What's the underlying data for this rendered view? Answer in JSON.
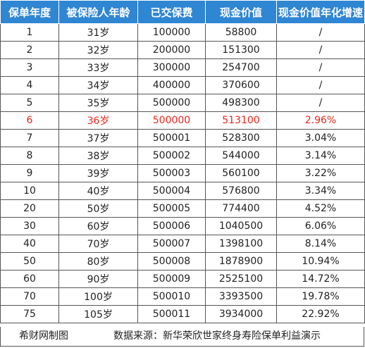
{
  "table": {
    "headers": [
      "保单年度",
      "被保险人年龄",
      "已交保费",
      "现金价值",
      "现金价值年化增速"
    ],
    "highlight_color": "#e8271c",
    "header_color": "#2f86d3",
    "rows": [
      {
        "year": "1",
        "age": "31岁",
        "paid": "100000",
        "cash": "58800",
        "growth": "/"
      },
      {
        "year": "2",
        "age": "32岁",
        "paid": "200000",
        "cash": "151300",
        "growth": "/"
      },
      {
        "year": "3",
        "age": "33岁",
        "paid": "300000",
        "cash": "254700",
        "growth": "/"
      },
      {
        "year": "4",
        "age": "34岁",
        "paid": "400000",
        "cash": "370600",
        "growth": "/"
      },
      {
        "year": "5",
        "age": "35岁",
        "paid": "500000",
        "cash": "498300",
        "growth": "/"
      },
      {
        "year": "6",
        "age": "36岁",
        "paid": "500000",
        "cash": "513100",
        "growth": "2.96%",
        "highlight": true
      },
      {
        "year": "7",
        "age": "37岁",
        "paid": "500001",
        "cash": "528300",
        "growth": "3.04%"
      },
      {
        "year": "8",
        "age": "38岁",
        "paid": "500002",
        "cash": "544000",
        "growth": "3.14%"
      },
      {
        "year": "9",
        "age": "39岁",
        "paid": "500003",
        "cash": "560100",
        "growth": "3.22%"
      },
      {
        "year": "10",
        "age": "40岁",
        "paid": "500004",
        "cash": "576800",
        "growth": "3.34%"
      },
      {
        "year": "20",
        "age": "50岁",
        "paid": "500005",
        "cash": "774400",
        "growth": "4.52%"
      },
      {
        "year": "30",
        "age": "60岁",
        "paid": "500006",
        "cash": "1040500",
        "growth": "6.06%"
      },
      {
        "year": "40",
        "age": "70岁",
        "paid": "500007",
        "cash": "1398100",
        "growth": "8.14%"
      },
      {
        "year": "50",
        "age": "80岁",
        "paid": "500008",
        "cash": "1878900",
        "growth": "10.94%"
      },
      {
        "year": "60",
        "age": "90岁",
        "paid": "500009",
        "cash": "2525100",
        "growth": "14.72%"
      },
      {
        "year": "70",
        "age": "100岁",
        "paid": "500010",
        "cash": "3393500",
        "growth": "19.78%"
      },
      {
        "year": "75",
        "age": "105岁",
        "paid": "500011",
        "cash": "3934000",
        "growth": "22.92%"
      }
    ]
  },
  "footer": {
    "credit": "希财网制图",
    "source": "数据来源：新华荣欣世家终身寿险保单利益演示"
  }
}
